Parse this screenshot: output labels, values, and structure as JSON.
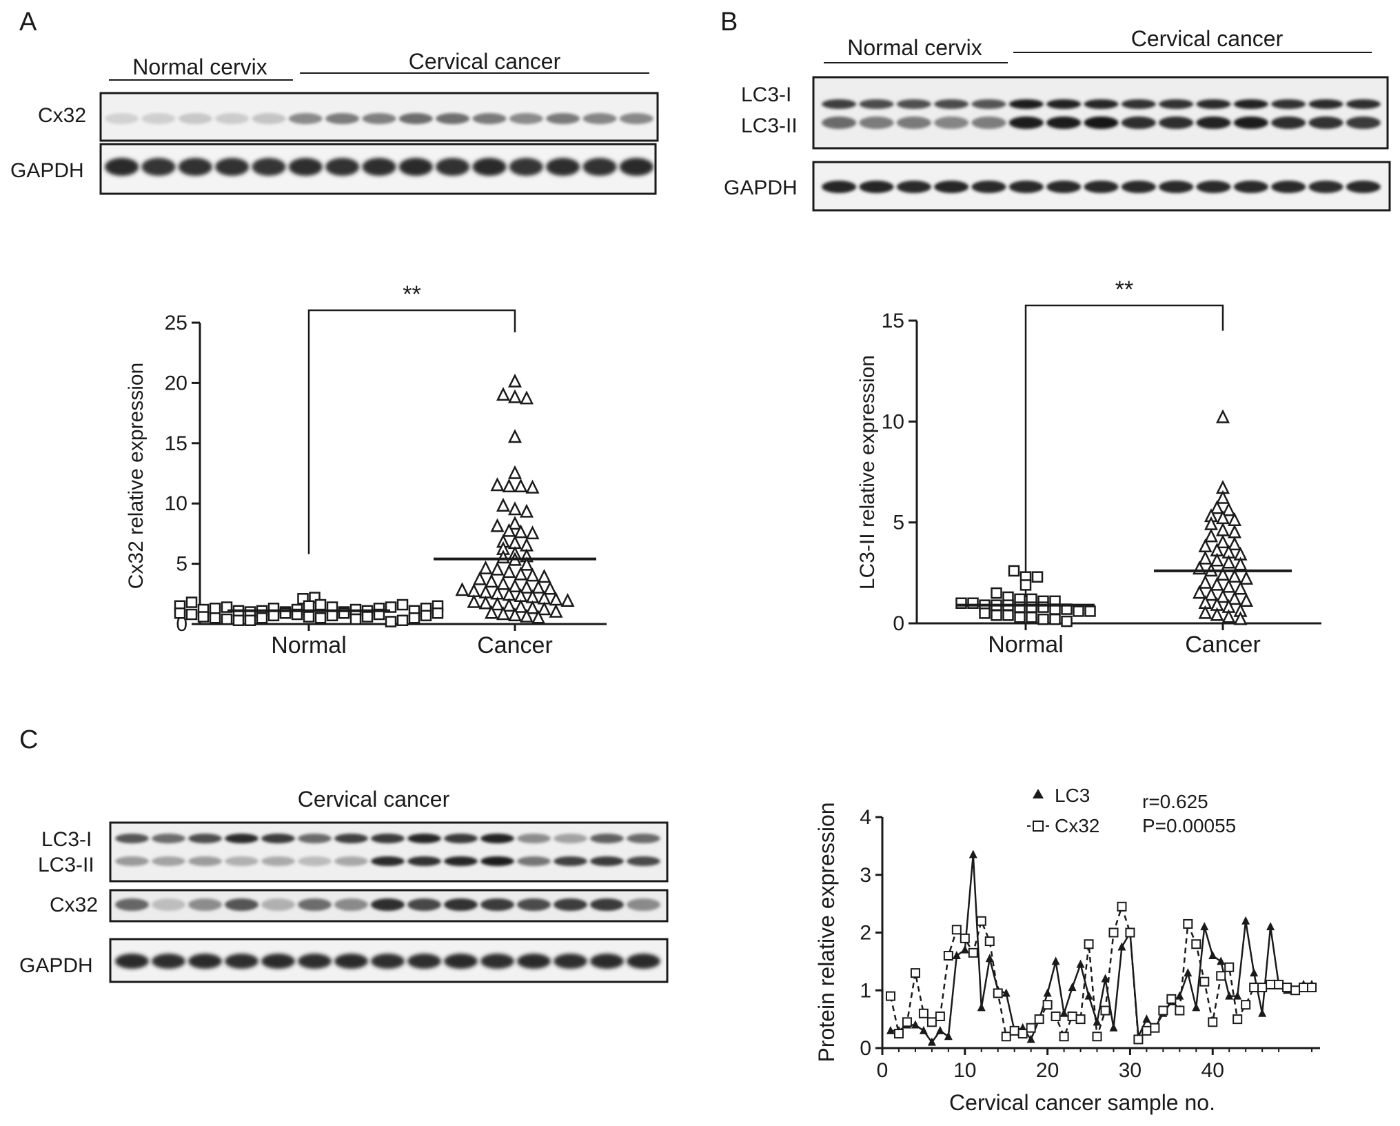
{
  "panels": {
    "a_label": "A",
    "b_label": "B",
    "c_label": "C"
  },
  "blots": {
    "a": {
      "group_normal": "Normal cervix",
      "group_cancer": "Cervical cancer",
      "row1": "Cx32",
      "row2": "GAPDH"
    },
    "b": {
      "group_normal": "Normal cervix",
      "group_cancer": "Cervical cancer",
      "row1a": "LC3-I",
      "row1b": "LC3-II",
      "row2": "GAPDH"
    },
    "c": {
      "title": "Cervical cancer",
      "row1a": "LC3-I",
      "row1b": "LC3-II",
      "row2": "Cx32",
      "row3": "GAPDH"
    }
  },
  "chart_data": [
    {
      "type": "scatter",
      "panel": "A",
      "ylabel": "Cx32 relative expression",
      "xlabel": "",
      "categories": [
        "Normal",
        "Cancer"
      ],
      "ylim": [
        0,
        25
      ],
      "yticks": [
        0,
        5,
        10,
        15,
        20,
        25
      ],
      "significance": "**",
      "colors": {
        "ink": "#1a1a1a"
      },
      "series": [
        {
          "category": "Normal",
          "marker": "square",
          "mean": 1.1,
          "values": [
            1.5,
            2.1,
            1.8,
            2.2,
            1.2,
            1.3,
            1.4,
            1.1,
            1.0,
            0.9,
            0.8,
            0.6,
            0.5,
            0.4,
            0.3,
            0.3,
            0.5,
            0.7,
            0.9,
            1.1,
            1.3,
            1.0,
            0.8,
            0.6,
            1.2,
            1.5,
            1.6,
            1.4,
            0.5,
            0.7,
            0.9,
            1.0,
            1.2,
            0.4,
            0.6,
            0.8,
            1.1,
            1.3,
            1.4,
            1.6,
            0.2,
            0.3,
            0.5,
            0.7,
            0.9,
            1.1,
            1.3,
            1.5
          ]
        },
        {
          "category": "Cancer",
          "marker": "triangle",
          "mean": 5.4,
          "values": [
            20.1,
            19.0,
            18.8,
            18.7,
            15.5,
            12.5,
            11.5,
            11.4,
            11.4,
            11.3,
            9.8,
            9.5,
            9.3,
            8.3,
            8.1,
            7.7,
            7.6,
            7.5,
            6.8,
            6.7,
            6.5,
            6.2,
            5.8,
            5.6,
            5.5,
            5.3,
            4.9,
            4.6,
            4.5,
            4.3,
            4.1,
            4.0,
            3.9,
            3.7,
            3.5,
            3.3,
            3.1,
            3.0,
            3.0,
            2.9,
            2.8,
            2.7,
            2.6,
            2.5,
            2.4,
            2.3,
            2.2,
            2.1,
            2.0,
            1.9,
            1.8,
            1.7,
            1.6,
            1.5,
            1.4,
            1.3,
            1.2,
            1.0,
            0.9,
            0.8,
            0.7,
            0.6,
            0.5
          ]
        }
      ]
    },
    {
      "type": "scatter",
      "panel": "B",
      "ylabel": "LC3-II relative expression",
      "xlabel": "",
      "categories": [
        "Normal",
        "Cancer"
      ],
      "ylim": [
        0,
        15
      ],
      "yticks": [
        0,
        5,
        10,
        15
      ],
      "significance": "**",
      "colors": {
        "ink": "#1a1a1a"
      },
      "series": [
        {
          "category": "Normal",
          "marker": "square",
          "mean": 0.9,
          "values": [
            2.6,
            2.3,
            2.3,
            1.9,
            1.5,
            1.3,
            1.2,
            1.2,
            1.1,
            1.1,
            1.0,
            1.0,
            0.9,
            0.9,
            0.9,
            0.8,
            0.8,
            0.8,
            0.7,
            0.7,
            0.6,
            0.6,
            0.5,
            0.4,
            0.4,
            0.3,
            0.3,
            0.2,
            0.2,
            0.1
          ]
        },
        {
          "category": "Cancer",
          "marker": "triangle",
          "mean": 2.6,
          "values": [
            10.2,
            6.7,
            6.2,
            5.7,
            5.6,
            5.3,
            5.2,
            5.1,
            4.9,
            4.6,
            4.5,
            4.3,
            4.0,
            3.9,
            3.8,
            3.6,
            3.5,
            3.4,
            3.2,
            3.1,
            3.0,
            2.9,
            2.7,
            2.6,
            2.4,
            2.3,
            2.2,
            2.0,
            1.9,
            1.8,
            1.7,
            1.5,
            1.4,
            1.3,
            1.2,
            1.1,
            1.0,
            0.9,
            0.8,
            0.6,
            0.5,
            0.4,
            0.3,
            0.2
          ]
        }
      ]
    },
    {
      "type": "line",
      "panel": "C",
      "ylabel": "Protein relative expression",
      "xlabel": "Cervical cancer sample no.",
      "xlim": [
        0,
        53
      ],
      "ylim": [
        0,
        4
      ],
      "xticks": [
        0,
        10,
        20,
        30,
        40
      ],
      "yticks": [
        0,
        1,
        2,
        3,
        4
      ],
      "annotations": [
        "r=0.625",
        "P=0.00055"
      ],
      "legend_position": "top",
      "colors": {
        "ink": "#1a1a1a"
      },
      "series": [
        {
          "name": "LC3",
          "marker": "filled-triangle",
          "style": "solid",
          "x": [
            1,
            2,
            3,
            4,
            5,
            6,
            7,
            8,
            9,
            10,
            11,
            12,
            13,
            14,
            15,
            16,
            17,
            18,
            19,
            20,
            21,
            22,
            23,
            24,
            25,
            26,
            27,
            28,
            29,
            30,
            31,
            32,
            33,
            34,
            35,
            36,
            37,
            38,
            39,
            40,
            41,
            42,
            43,
            44,
            45,
            46,
            47,
            48,
            49,
            50,
            51,
            52
          ],
          "values": [
            0.3,
            0.3,
            0.4,
            0.4,
            0.3,
            0.1,
            0.3,
            0.2,
            1.6,
            1.7,
            3.35,
            0.7,
            1.55,
            1.0,
            0.95,
            0.3,
            0.35,
            0.15,
            0.5,
            0.95,
            1.5,
            0.6,
            1.05,
            1.45,
            0.9,
            0.45,
            1.2,
            0.35,
            1.75,
            2.0,
            0.2,
            0.5,
            0.35,
            0.6,
            0.8,
            0.9,
            1.3,
            0.7,
            2.1,
            1.6,
            1.5,
            0.9,
            0.9,
            2.2,
            1.3,
            0.6,
            2.1,
            1.1,
            1.0,
            1.0,
            1.1,
            1.1
          ]
        },
        {
          "name": "Cx32",
          "marker": "open-square",
          "style": "dashed",
          "x": [
            1,
            2,
            3,
            4,
            5,
            6,
            7,
            8,
            9,
            10,
            11,
            12,
            13,
            14,
            15,
            16,
            17,
            18,
            19,
            20,
            21,
            22,
            23,
            24,
            25,
            26,
            27,
            28,
            29,
            30,
            31,
            32,
            33,
            34,
            35,
            36,
            37,
            38,
            39,
            40,
            41,
            42,
            43,
            44,
            45,
            46,
            47,
            48,
            49,
            50,
            51,
            52
          ],
          "values": [
            0.9,
            0.25,
            0.45,
            1.3,
            0.6,
            0.45,
            0.55,
            1.6,
            2.05,
            1.9,
            1.65,
            2.2,
            1.85,
            0.95,
            0.2,
            0.3,
            0.25,
            0.35,
            0.5,
            0.75,
            0.55,
            0.2,
            0.55,
            0.5,
            1.8,
            0.2,
            0.65,
            2.0,
            2.45,
            2.0,
            0.15,
            0.3,
            0.35,
            0.65,
            0.85,
            0.65,
            2.15,
            1.8,
            1.15,
            0.45,
            1.25,
            1.4,
            0.5,
            0.75,
            1.05,
            1.05,
            1.1,
            1.1,
            1.05,
            1.0,
            1.05,
            1.05
          ]
        }
      ]
    }
  ]
}
